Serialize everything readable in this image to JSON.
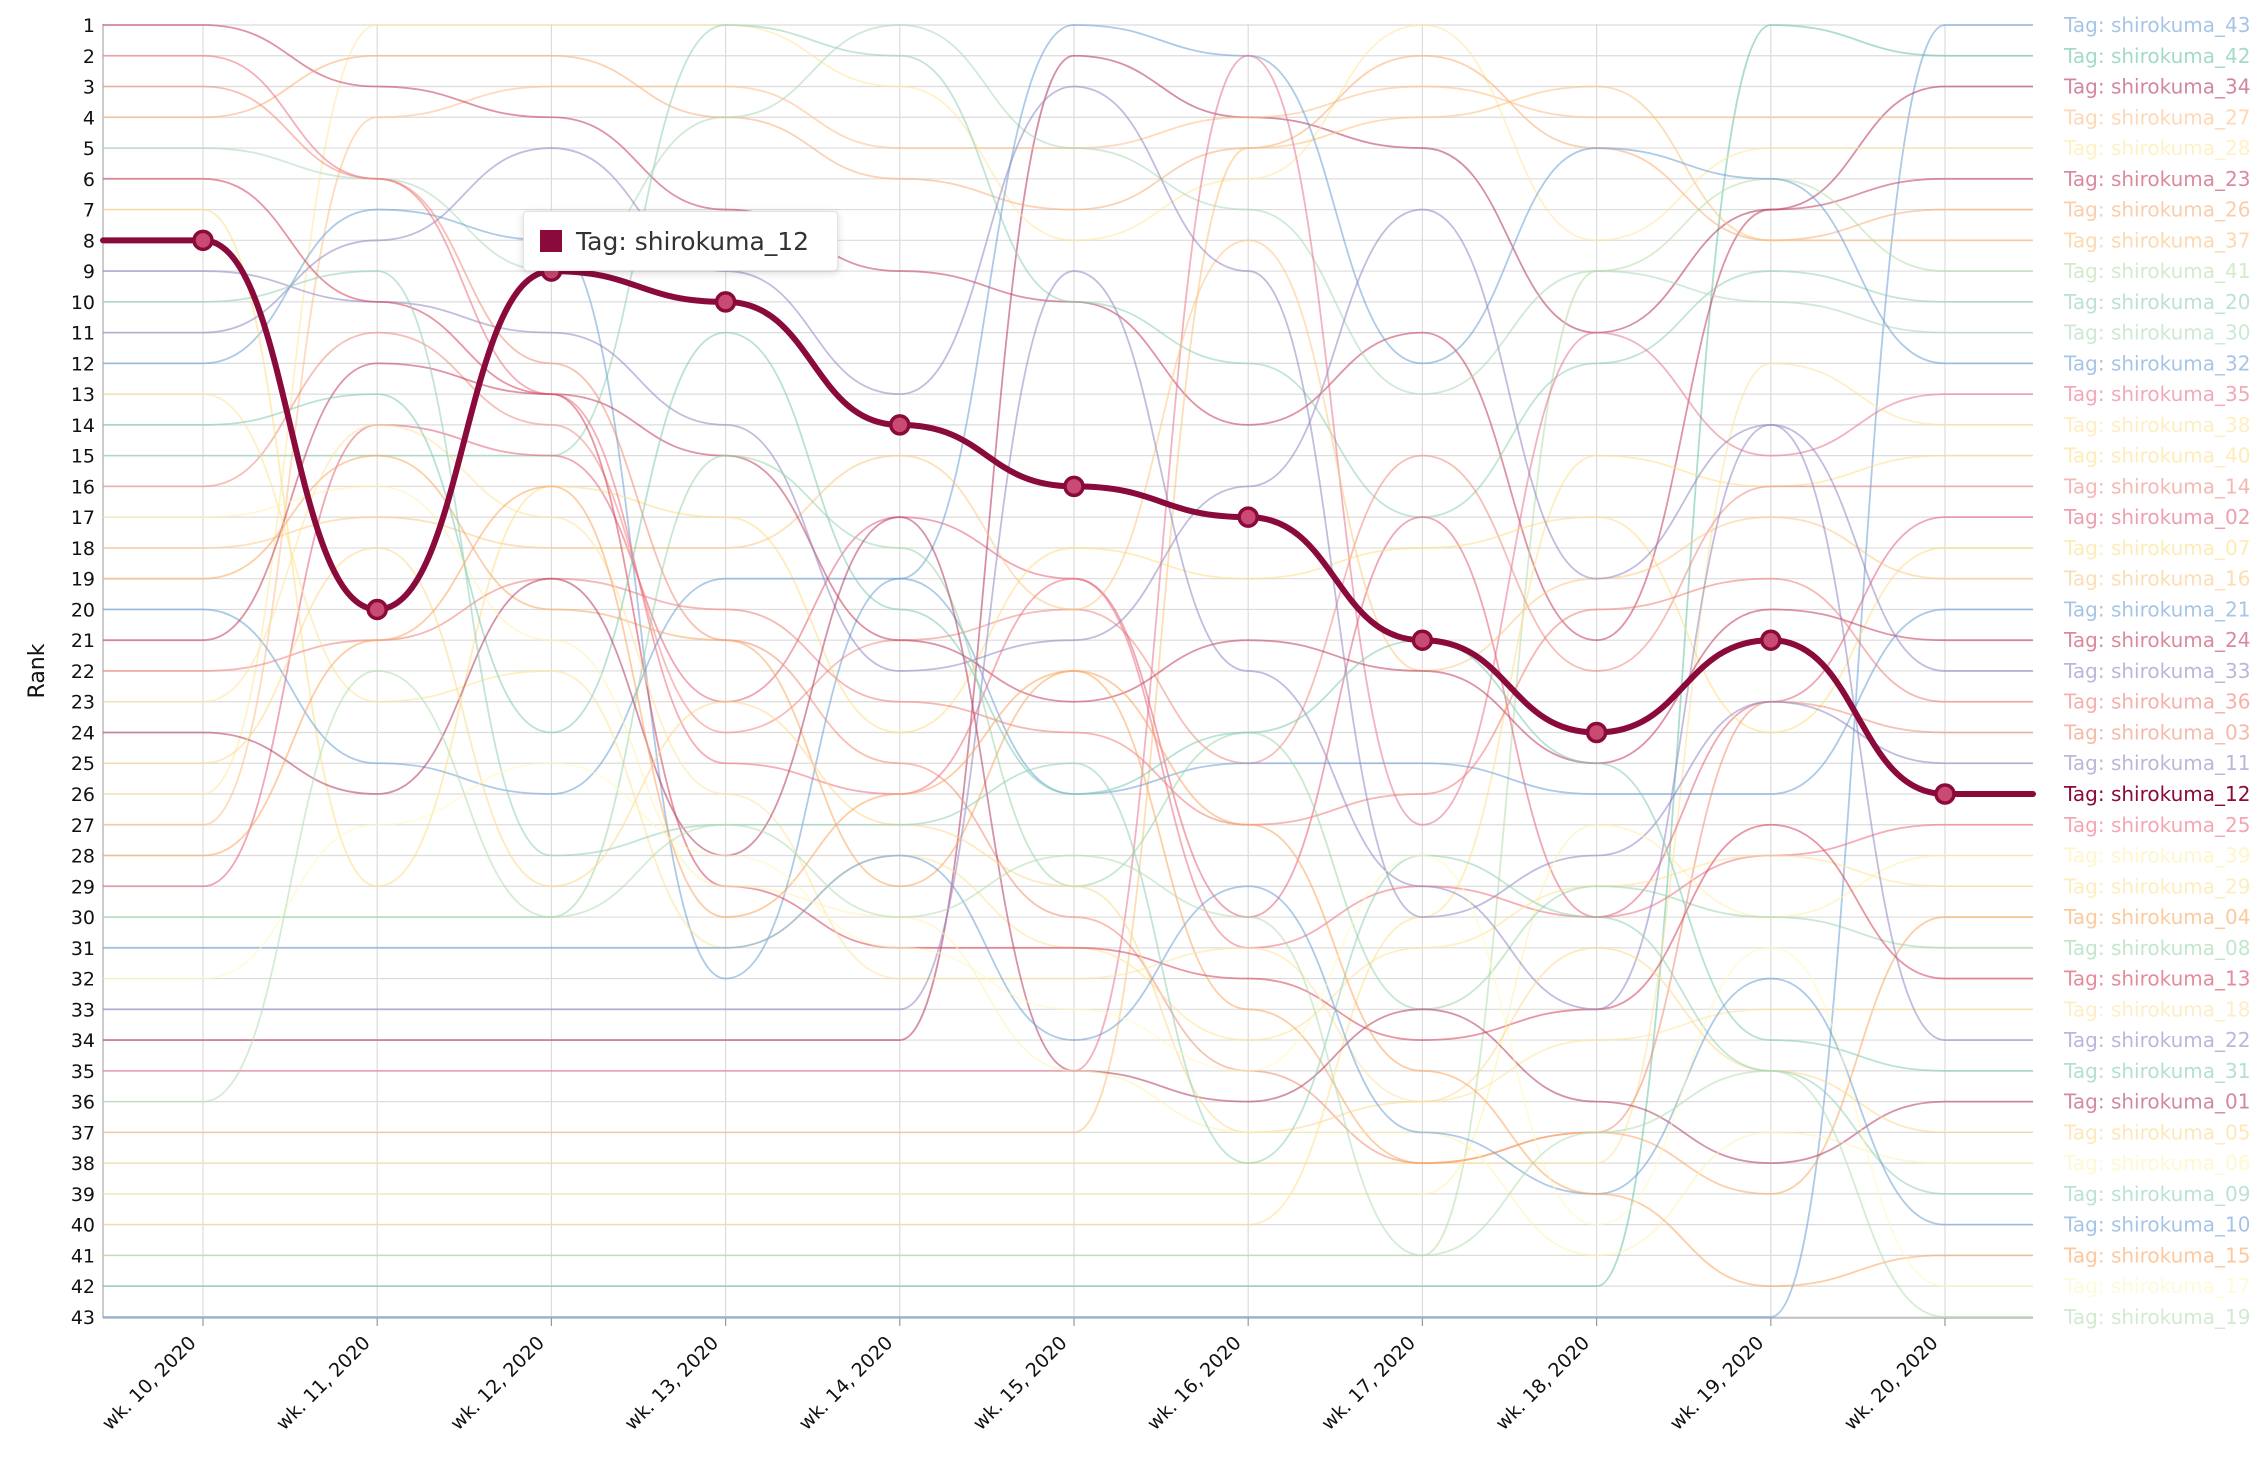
{
  "chart_data": {
    "type": "line",
    "subtype": "bump",
    "ylabel": "Rank",
    "x": [
      "wk. 10, 2020",
      "wk. 11, 2020",
      "wk. 12, 2020",
      "wk. 13, 2020",
      "wk. 14, 2020",
      "wk. 15, 2020",
      "wk. 16, 2020",
      "wk. 17, 2020",
      "wk. 18, 2020",
      "wk. 19, 2020",
      "wk. 20, 2020"
    ],
    "ylim": [
      1,
      43
    ],
    "y_reversed": true,
    "y_ticks": [
      1,
      2,
      3,
      4,
      5,
      6,
      7,
      8,
      9,
      10,
      11,
      12,
      13,
      14,
      15,
      16,
      17,
      18,
      19,
      20,
      21,
      22,
      23,
      24,
      25,
      26,
      27,
      28,
      29,
      30,
      31,
      32,
      33,
      34,
      35,
      36,
      37,
      38,
      39,
      40,
      41,
      42,
      43
    ],
    "grid": true,
    "legend_position": "right",
    "highlighted_series": "Tag: shirokuma_12",
    "series": [
      {
        "name": "Tag: shirokuma_43",
        "color": "#6a9ed6",
        "values": [
          43,
          43,
          43,
          43,
          43,
          43,
          43,
          43,
          43,
          43,
          1
        ]
      },
      {
        "name": "Tag: shirokuma_42",
        "color": "#66c2a5",
        "values": [
          42,
          42,
          42,
          42,
          42,
          42,
          42,
          42,
          42,
          1,
          2
        ]
      },
      {
        "name": "Tag: shirokuma_34",
        "color": "#b5355d",
        "values": [
          34,
          34,
          34,
          34,
          34,
          2,
          4,
          5,
          11,
          7,
          3
        ]
      },
      {
        "name": "Tag: shirokuma_27",
        "color": "#fdbe85",
        "values": [
          27,
          4,
          3,
          3,
          5,
          5,
          4,
          3,
          4,
          4,
          4
        ]
      },
      {
        "name": "Tag: shirokuma_28",
        "color": "#ffe89c",
        "values": [
          26,
          1,
          1,
          1,
          3,
          8,
          6,
          1,
          8,
          5,
          5
        ]
      },
      {
        "name": "Tag: shirokuma_23",
        "color": "#c23c5a",
        "values": [
          1,
          3,
          4,
          7,
          9,
          10,
          14,
          11,
          21,
          7,
          6
        ]
      },
      {
        "name": "Tag: shirokuma_26",
        "color": "#f7ad75",
        "values": [
          4,
          2,
          2,
          4,
          6,
          7,
          5,
          2,
          5,
          8,
          7
        ]
      },
      {
        "name": "Tag: shirokuma_37",
        "color": "#f9c27a",
        "values": [
          37,
          37,
          37,
          37,
          37,
          37,
          5,
          4,
          3,
          8,
          8
        ]
      },
      {
        "name": "Tag: shirokuma_41",
        "color": "#b7dca8",
        "values": [
          41,
          41,
          41,
          41,
          41,
          41,
          41,
          41,
          9,
          6,
          9
        ]
      },
      {
        "name": "Tag: shirokuma_20",
        "color": "#8fcfb3",
        "values": [
          15,
          15,
          15,
          1,
          2,
          10,
          12,
          17,
          12,
          9,
          10
        ]
      },
      {
        "name": "Tag: shirokuma_30",
        "color": "#abd9b6",
        "values": [
          5,
          6,
          9,
          4,
          1,
          5,
          7,
          13,
          9,
          10,
          11
        ]
      },
      {
        "name": "Tag: shirokuma_32",
        "color": "#6a9ed6",
        "values": [
          12,
          7,
          8,
          32,
          19,
          1,
          2,
          12,
          5,
          6,
          12
        ]
      },
      {
        "name": "Tag: shirokuma_35",
        "color": "#e8728c",
        "values": [
          35,
          35,
          35,
          35,
          35,
          35,
          2,
          27,
          11,
          15,
          13
        ]
      },
      {
        "name": "Tag: shirokuma_38",
        "color": "#fee29a",
        "values": [
          38,
          38,
          38,
          38,
          38,
          38,
          38,
          38,
          38,
          12,
          14
        ]
      },
      {
        "name": "Tag: shirokuma_40",
        "color": "#fde08a",
        "values": [
          40,
          40,
          40,
          40,
          40,
          40,
          40,
          30,
          15,
          16,
          15
        ]
      },
      {
        "name": "Tag: shirokuma_14",
        "color": "#ee8a82",
        "values": [
          16,
          11,
          14,
          24,
          21,
          20,
          25,
          15,
          22,
          16,
          16
        ]
      },
      {
        "name": "Tag: shirokuma_02",
        "color": "#e35f78",
        "values": [
          29,
          14,
          15,
          23,
          17,
          19,
          30,
          17,
          30,
          23,
          17
        ]
      },
      {
        "name": "Tag: shirokuma_07",
        "color": "#fddf84",
        "values": [
          7,
          29,
          16,
          17,
          24,
          18,
          19,
          18,
          17,
          24,
          18
        ]
      },
      {
        "name": "Tag: shirokuma_16",
        "color": "#fbc882",
        "values": [
          18,
          17,
          18,
          18,
          15,
          20,
          8,
          22,
          19,
          17,
          19
        ]
      },
      {
        "name": "Tag: shirokuma_21",
        "color": "#6a9ed6",
        "values": [
          20,
          25,
          26,
          19,
          19,
          26,
          25,
          25,
          26,
          26,
          20
        ]
      },
      {
        "name": "Tag: shirokuma_24",
        "color": "#c23c5a",
        "values": [
          21,
          12,
          13,
          15,
          21,
          23,
          21,
          22,
          25,
          20,
          21
        ]
      },
      {
        "name": "Tag: shirokuma_33",
        "color": "#8f86c2",
        "values": [
          9,
          10,
          11,
          14,
          22,
          21,
          16,
          7,
          19,
          14,
          22
        ]
      },
      {
        "name": "Tag: shirokuma_36",
        "color": "#f07b73",
        "values": [
          22,
          21,
          19,
          20,
          23,
          24,
          27,
          26,
          20,
          19,
          23
        ]
      },
      {
        "name": "Tag: shirokuma_03",
        "color": "#ef8d72",
        "values": [
          3,
          6,
          12,
          21,
          25,
          30,
          35,
          38,
          37,
          23,
          24
        ]
      },
      {
        "name": "Tag: shirokuma_11",
        "color": "#8f86c2",
        "values": [
          11,
          8,
          5,
          9,
          13,
          3,
          9,
          30,
          28,
          23,
          25
        ]
      },
      {
        "name": "Tag: shirokuma_12",
        "color": "#8a0a3c",
        "values": [
          8,
          20,
          9,
          10,
          14,
          16,
          17,
          21,
          24,
          21,
          26
        ]
      },
      {
        "name": "Tag: shirokuma_25",
        "color": "#ec6d80",
        "values": [
          2,
          6,
          13,
          25,
          26,
          19,
          31,
          29,
          30,
          28,
          27
        ]
      },
      {
        "name": "Tag: shirokuma_39",
        "color": "#fff0a8",
        "values": [
          39,
          39,
          39,
          39,
          39,
          39,
          39,
          39,
          27,
          30,
          28
        ]
      },
      {
        "name": "Tag: shirokuma_29",
        "color": "#fde393",
        "values": [
          13,
          23,
          22,
          31,
          28,
          31,
          34,
          31,
          29,
          28,
          29
        ]
      },
      {
        "name": "Tag: shirokuma_04",
        "color": "#f8a85e",
        "values": [
          19,
          15,
          20,
          21,
          29,
          22,
          33,
          38,
          37,
          39,
          30
        ]
      },
      {
        "name": "Tag: shirokuma_08",
        "color": "#9ad6a8",
        "values": [
          30,
          30,
          30,
          15,
          18,
          29,
          24,
          33,
          29,
          30,
          31
        ]
      },
      {
        "name": "Tag: shirokuma_13",
        "color": "#d4405a",
        "values": [
          6,
          10,
          13,
          29,
          31,
          31,
          32,
          34,
          33,
          27,
          32
        ]
      },
      {
        "name": "Tag: shirokuma_18",
        "color": "#fee3a0",
        "values": [
          23,
          14,
          17,
          26,
          32,
          32,
          31,
          36,
          34,
          33,
          33
        ]
      },
      {
        "name": "Tag: shirokuma_22",
        "color": "#8f86c2",
        "values": [
          33,
          33,
          33,
          33,
          33,
          9,
          22,
          29,
          33,
          14,
          34
        ]
      },
      {
        "name": "Tag: shirokuma_31",
        "color": "#80cbb0",
        "values": [
          14,
          13,
          24,
          11,
          20,
          26,
          24,
          21,
          25,
          34,
          35
        ]
      },
      {
        "name": "Tag: shirokuma_01",
        "color": "#b23a63",
        "values": [
          24,
          26,
          19,
          28,
          17,
          35,
          36,
          33,
          36,
          38,
          36
        ]
      },
      {
        "name": "Tag: shirokuma_05",
        "color": "#fdd88a",
        "values": [
          25,
          18,
          29,
          23,
          27,
          29,
          37,
          36,
          31,
          35,
          37
        ]
      },
      {
        "name": "Tag: shirokuma_06",
        "color": "#fff3b0",
        "values": [
          17,
          16,
          21,
          29,
          30,
          35,
          37,
          37,
          41,
          37,
          38
        ]
      },
      {
        "name": "Tag: shirokuma_09",
        "color": "#8fcfb3",
        "values": [
          10,
          9,
          28,
          27,
          27,
          25,
          38,
          28,
          30,
          35,
          39
        ]
      },
      {
        "name": "Tag: shirokuma_10",
        "color": "#6a9ed6",
        "values": [
          31,
          31,
          31,
          31,
          28,
          34,
          29,
          37,
          39,
          32,
          40
        ]
      },
      {
        "name": "Tag: shirokuma_15",
        "color": "#fba45c",
        "values": [
          28,
          21,
          16,
          30,
          26,
          22,
          27,
          35,
          39,
          42,
          41
        ]
      },
      {
        "name": "Tag: shirokuma_17",
        "color": "#fff7c0",
        "values": [
          32,
          27,
          25,
          28,
          31,
          33,
          35,
          28,
          40,
          31,
          42
        ]
      },
      {
        "name": "Tag: shirokuma_19",
        "color": "#b2dcb0",
        "values": [
          36,
          22,
          30,
          27,
          30,
          28,
          30,
          41,
          37,
          35,
          43
        ]
      }
    ]
  },
  "tooltip": {
    "label": "Tag: shirokuma_12",
    "color": "#8a0a3c"
  }
}
